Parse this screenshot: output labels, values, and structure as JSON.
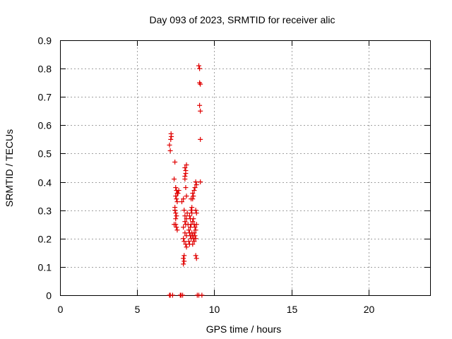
{
  "chart_data": {
    "type": "scatter",
    "title": "Day 093 of 2023, SRMTID for receiver alic",
    "xlabel": "GPS time / hours",
    "ylabel": "SRMTID / TECUs",
    "xlim": [
      0,
      24
    ],
    "ylim": [
      0,
      0.9
    ],
    "xticks": [
      0,
      5,
      10,
      15,
      20
    ],
    "yticks": [
      0,
      0.1,
      0.2,
      0.3,
      0.4,
      0.5,
      0.6,
      0.7,
      0.8,
      0.9
    ],
    "grid": true,
    "marker": "+",
    "color": "#e00000",
    "series": [
      {
        "name": "SRMTID",
        "points": [
          [
            7.1,
            0.0
          ],
          [
            7.15,
            0.0
          ],
          [
            7.3,
            0.0
          ],
          [
            7.8,
            0.0
          ],
          [
            7.85,
            0.0
          ],
          [
            7.95,
            0.0
          ],
          [
            8.9,
            0.0
          ],
          [
            9.0,
            0.0
          ],
          [
            9.2,
            0.0
          ],
          [
            7.1,
            0.53
          ],
          [
            7.15,
            0.51
          ],
          [
            7.2,
            0.57
          ],
          [
            7.22,
            0.56
          ],
          [
            7.18,
            0.55
          ],
          [
            7.4,
            0.41
          ],
          [
            7.45,
            0.47
          ],
          [
            7.5,
            0.38
          ],
          [
            7.55,
            0.37
          ],
          [
            7.6,
            0.36
          ],
          [
            7.5,
            0.35
          ],
          [
            7.55,
            0.34
          ],
          [
            7.6,
            0.33
          ],
          [
            7.65,
            0.36
          ],
          [
            7.7,
            0.37
          ],
          [
            7.45,
            0.3
          ],
          [
            7.5,
            0.29
          ],
          [
            7.55,
            0.28
          ],
          [
            7.4,
            0.25
          ],
          [
            7.5,
            0.25
          ],
          [
            7.55,
            0.24
          ],
          [
            7.6,
            0.23
          ],
          [
            7.45,
            0.31
          ],
          [
            7.5,
            0.27
          ],
          [
            7.9,
            0.33
          ],
          [
            8.0,
            0.34
          ],
          [
            8.05,
            0.3
          ],
          [
            8.1,
            0.26
          ],
          [
            8.15,
            0.25
          ],
          [
            8.0,
            0.24
          ],
          [
            8.1,
            0.22
          ],
          [
            8.2,
            0.21
          ],
          [
            8.0,
            0.2
          ],
          [
            8.05,
            0.19
          ],
          [
            8.15,
            0.18
          ],
          [
            8.2,
            0.17
          ],
          [
            8.05,
            0.14
          ],
          [
            8.0,
            0.13
          ],
          [
            8.05,
            0.12
          ],
          [
            8.0,
            0.11
          ],
          [
            8.1,
            0.28
          ],
          [
            8.2,
            0.27
          ],
          [
            8.15,
            0.38
          ],
          [
            8.1,
            0.42
          ],
          [
            8.15,
            0.44
          ],
          [
            8.1,
            0.45
          ],
          [
            8.2,
            0.46
          ],
          [
            8.15,
            0.43
          ],
          [
            8.1,
            0.41
          ],
          [
            8.2,
            0.35
          ],
          [
            8.25,
            0.29
          ],
          [
            8.3,
            0.25
          ],
          [
            8.35,
            0.23
          ],
          [
            8.4,
            0.22
          ],
          [
            8.45,
            0.21
          ],
          [
            8.5,
            0.2
          ],
          [
            8.35,
            0.19
          ],
          [
            8.4,
            0.18
          ],
          [
            8.45,
            0.24
          ],
          [
            8.5,
            0.25
          ],
          [
            8.55,
            0.22
          ],
          [
            8.6,
            0.21
          ],
          [
            8.5,
            0.3
          ],
          [
            8.55,
            0.29
          ],
          [
            8.6,
            0.34
          ],
          [
            8.65,
            0.35
          ],
          [
            8.7,
            0.37
          ],
          [
            8.6,
            0.36
          ],
          [
            8.5,
            0.34
          ],
          [
            8.55,
            0.31
          ],
          [
            8.4,
            0.28
          ],
          [
            8.45,
            0.27
          ],
          [
            8.6,
            0.26
          ],
          [
            8.65,
            0.27
          ],
          [
            8.7,
            0.25
          ],
          [
            8.75,
            0.24
          ],
          [
            8.8,
            0.23
          ],
          [
            8.7,
            0.22
          ],
          [
            8.75,
            0.21
          ],
          [
            8.8,
            0.2
          ],
          [
            8.65,
            0.2
          ],
          [
            8.7,
            0.19
          ],
          [
            8.6,
            0.18
          ],
          [
            8.8,
            0.4
          ],
          [
            8.85,
            0.39
          ],
          [
            8.75,
            0.38
          ],
          [
            8.8,
            0.3
          ],
          [
            8.85,
            0.29
          ],
          [
            8.85,
            0.25
          ],
          [
            8.8,
            0.14
          ],
          [
            8.85,
            0.13
          ],
          [
            9.0,
            0.81
          ],
          [
            9.05,
            0.8
          ],
          [
            9.05,
            0.75
          ],
          [
            9.1,
            0.745
          ],
          [
            9.05,
            0.67
          ],
          [
            9.1,
            0.65
          ],
          [
            9.1,
            0.55
          ],
          [
            9.1,
            0.4
          ]
        ]
      }
    ]
  }
}
